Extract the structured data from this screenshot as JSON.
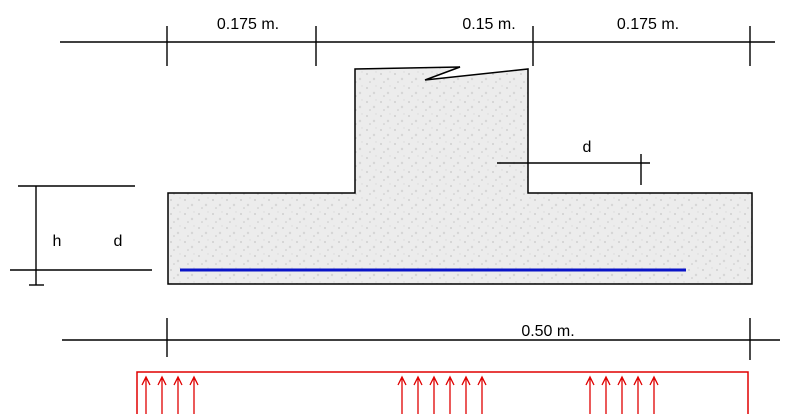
{
  "dimensions": {
    "top_left": "0.175 m.",
    "top_middle": "0.15 m.",
    "top_right": "0.175 m.",
    "effective_depth_right": "d",
    "height_left": "h",
    "depth_left": "d",
    "total_width": "0.50 m."
  }
}
